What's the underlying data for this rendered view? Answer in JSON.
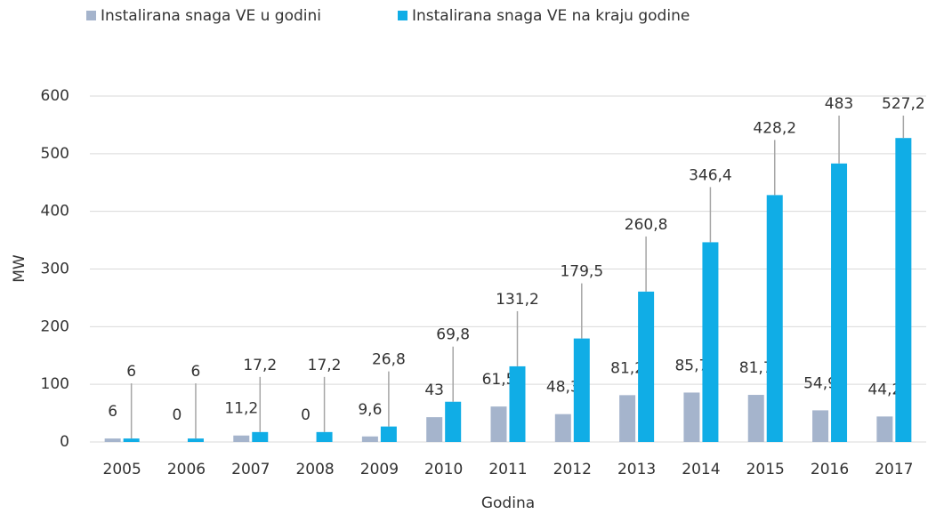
{
  "chart_data": {
    "type": "bar",
    "categories": [
      "2005",
      "2006",
      "2007",
      "2008",
      "2009",
      "2010",
      "2011",
      "2012",
      "2013",
      "2014",
      "2015",
      "2016",
      "2017"
    ],
    "series": [
      {
        "name": "Instalirana snaga VE u godini",
        "color": "#a5b4cc",
        "values": [
          6,
          0,
          11.2,
          0,
          9.6,
          43,
          61.5,
          48.3,
          81.2,
          85.7,
          81.7,
          54.9,
          44.2
        ],
        "value_labels": [
          "6",
          "0",
          "11,2",
          "0",
          "9,6",
          "43",
          "61,5",
          "48,3",
          "81,2",
          "85,7",
          "81,7",
          "54,9",
          "44,2"
        ]
      },
      {
        "name": "Instalirana snaga VE na kraju godine",
        "color": "#10ade6",
        "values": [
          6,
          6,
          17.2,
          17.2,
          26.8,
          69.8,
          131.2,
          179.5,
          260.8,
          346.4,
          428.2,
          483,
          527.2
        ],
        "value_labels": [
          "6",
          "6",
          "17,2",
          "17,2",
          "26,8",
          "69,8",
          "131,2",
          "179,5",
          "260,8",
          "346,4",
          "428,2",
          "483",
          "527,2"
        ]
      }
    ],
    "ylabel": "MW",
    "xlabel": "Godina",
    "ylim": [
      0,
      600
    ],
    "yticks": [
      0,
      100,
      200,
      300,
      400,
      500,
      600
    ],
    "grid": true,
    "legend": "top"
  }
}
